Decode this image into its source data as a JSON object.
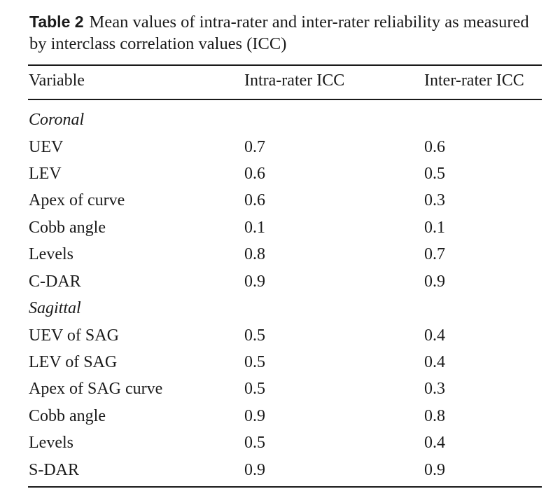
{
  "caption": {
    "label": "Table 2",
    "text": "Mean values of intra-rater and inter-rater reliability as measured by interclass correlation values (ICC)"
  },
  "table": {
    "headers": [
      "Variable",
      "Intra-rater ICC",
      "Inter-rater ICC"
    ],
    "sections": [
      {
        "name": "Coronal",
        "rows": [
          [
            "UEV",
            "0.7",
            "0.6"
          ],
          [
            "LEV",
            "0.6",
            "0.5"
          ],
          [
            "Apex of curve",
            "0.6",
            "0.3"
          ],
          [
            "Cobb angle",
            "0.1",
            "0.1"
          ],
          [
            "Levels",
            "0.8",
            "0.7"
          ],
          [
            "C-DAR",
            "0.9",
            "0.9"
          ]
        ]
      },
      {
        "name": "Sagittal",
        "rows": [
          [
            "UEV of SAG",
            "0.5",
            "0.4"
          ],
          [
            "LEV of SAG",
            "0.5",
            "0.4"
          ],
          [
            "Apex of SAG curve",
            "0.5",
            "0.3"
          ],
          [
            "Cobb angle",
            "0.9",
            "0.8"
          ],
          [
            "Levels",
            "0.5",
            "0.4"
          ],
          [
            "S-DAR",
            "0.9",
            "0.9"
          ]
        ]
      }
    ]
  }
}
